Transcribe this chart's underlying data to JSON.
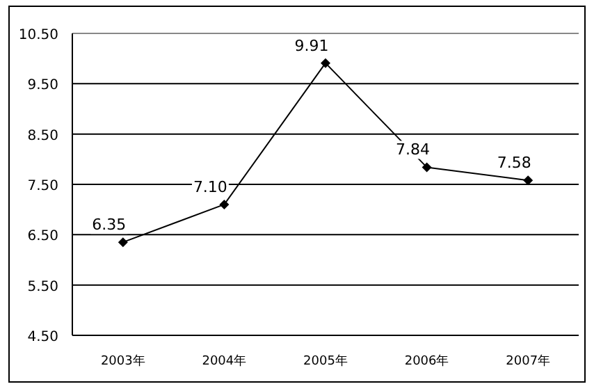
{
  "chart_data": {
    "type": "line",
    "categories": [
      "2003年",
      "2004年",
      "2005年",
      "2006年",
      "2007年"
    ],
    "values": [
      6.35,
      7.1,
      9.91,
      7.84,
      7.58
    ],
    "value_labels": [
      "6.35",
      "7.10",
      "9.91",
      "7.84",
      "7.58"
    ],
    "color": "#000000",
    "marker": "diamond",
    "grid": "y",
    "ylim": [
      4.5,
      10.5
    ],
    "yticks": [
      {
        "value": 4.5,
        "label": "4.50"
      },
      {
        "value": 5.5,
        "label": "5.50"
      },
      {
        "value": 6.5,
        "label": "6.50"
      },
      {
        "value": 7.5,
        "label": "7.50"
      },
      {
        "value": 8.5,
        "label": "8.50"
      },
      {
        "value": 9.5,
        "label": "9.50"
      },
      {
        "value": 10.5,
        "label": "10.50"
      }
    ]
  }
}
